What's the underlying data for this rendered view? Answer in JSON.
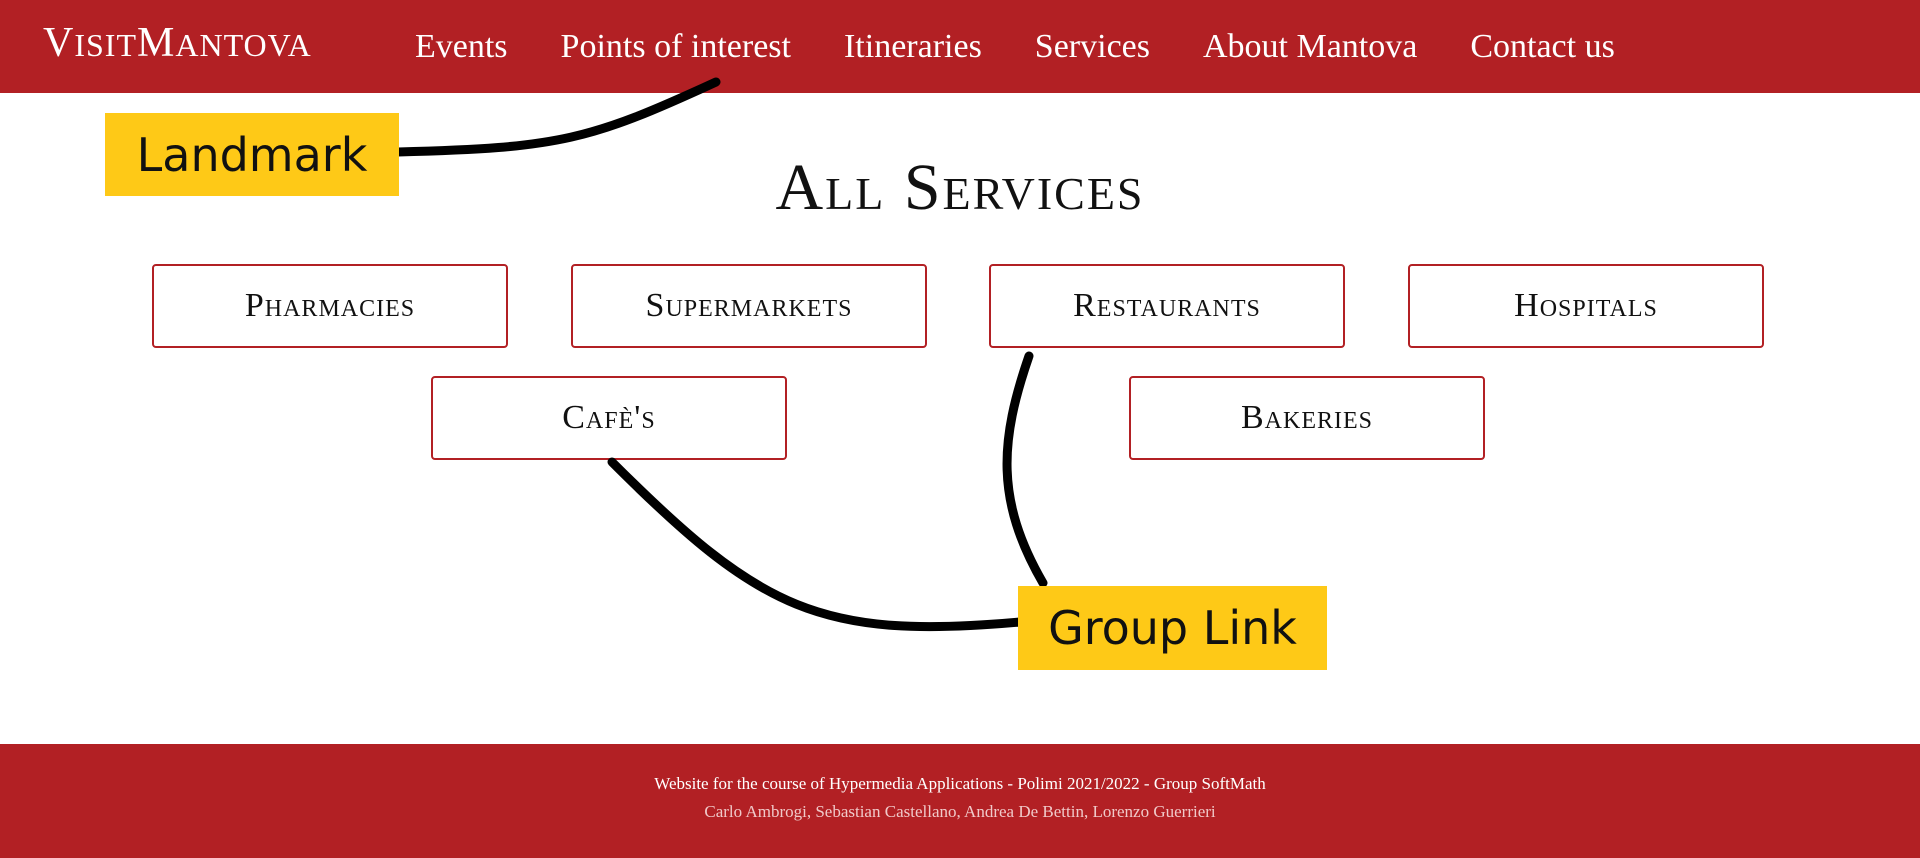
{
  "header": {
    "logo_first": "V",
    "logo_mid": "ISIT",
    "logo_second": "M",
    "logo_end": "ANTOVA",
    "nav": [
      "Events",
      "Points of interest",
      "Itineraries",
      "Services",
      "About Mantova",
      "Contact us"
    ]
  },
  "main": {
    "title": "All Services",
    "services": [
      "Pharmacies",
      "Supermarkets",
      "Restaurants",
      "Hospitals",
      "Cafè's",
      "Bakeries"
    ]
  },
  "annotations": {
    "landmark": "Landmark",
    "group_link": "Group Link"
  },
  "footer": {
    "line1": "Website for the course of Hypermedia Applications - Polimi 2021/2022 - Group SoftMath",
    "line2": "Carlo Ambrogi, Sebastian Castellano, Andrea De Bettin, Lorenzo Guerrieri"
  },
  "colors": {
    "brand_red": "#b22024",
    "annotation_yellow": "#fec917"
  }
}
